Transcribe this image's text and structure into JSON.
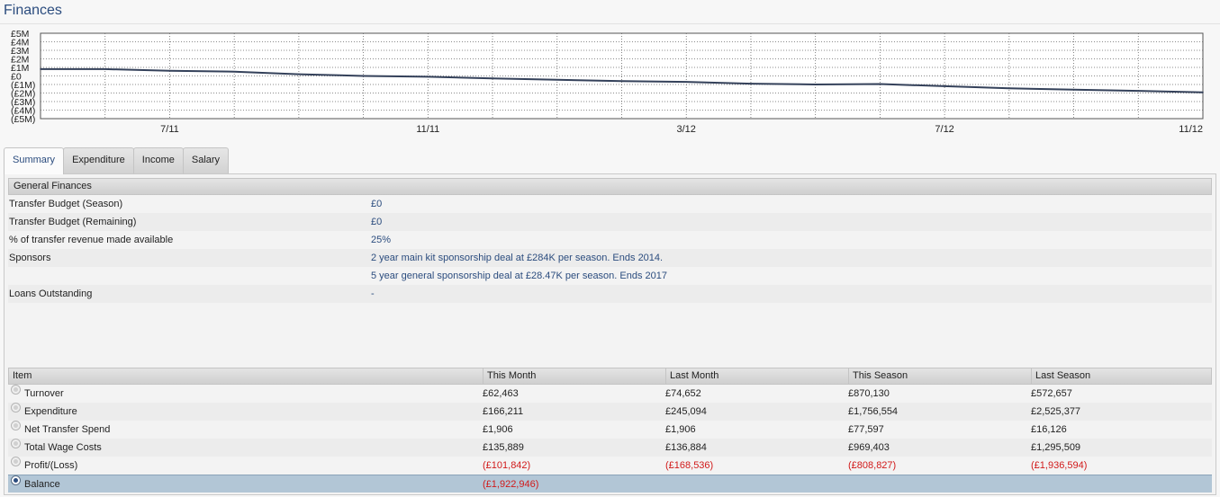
{
  "page": {
    "title": "Finances"
  },
  "chart_data": {
    "type": "line",
    "title": "",
    "y_tick_labels": [
      "£5M",
      "£4M",
      "£3M",
      "£2M",
      "£1M",
      "£0",
      "(£1M)",
      "(£2M)",
      "(£3M)",
      "(£4M)",
      "(£5M)"
    ],
    "y_ticks": [
      5,
      4,
      3,
      2,
      1,
      0,
      -1,
      -2,
      -3,
      -4,
      -5
    ],
    "ylim": [
      -5,
      5
    ],
    "x_tick_labels": [
      "7/11",
      "11/11",
      "3/12",
      "7/12",
      "11/12"
    ],
    "grid": true,
    "series": [
      {
        "color": "#34415a",
        "x": [
          "5/11",
          "6/11",
          "7/11",
          "8/11",
          "9/11",
          "10/11",
          "11/11",
          "12/11",
          "1/12",
          "2/12",
          "3/12",
          "4/12",
          "5/12",
          "6/12",
          "7/12",
          "8/12",
          "9/12",
          "10/12",
          "11/12"
        ],
        "values": [
          0.8,
          0.8,
          0.6,
          0.5,
          0.2,
          0.0,
          -0.1,
          -0.3,
          -0.45,
          -0.6,
          -0.7,
          -0.9,
          -1.0,
          -0.95,
          -1.2,
          -1.45,
          -1.6,
          -1.75,
          -1.92
        ]
      }
    ]
  },
  "tabs": [
    {
      "label": "Summary",
      "active": true
    },
    {
      "label": "Expenditure",
      "active": false
    },
    {
      "label": "Income",
      "active": false
    },
    {
      "label": "Salary",
      "active": false
    }
  ],
  "general": {
    "header": "General Finances",
    "rows": [
      {
        "label": "Transfer Budget (Season)",
        "value": "£0"
      },
      {
        "label": "Transfer Budget (Remaining)",
        "value": "£0"
      },
      {
        "label": "% of transfer revenue made available",
        "value": "25%"
      },
      {
        "label": "Sponsors",
        "value": "2 year main kit sponsorship deal at £284K per season. Ends 2014."
      },
      {
        "label": "",
        "value": "5 year general sponsorship deal at £28.47K per season. Ends 2017"
      },
      {
        "label": "Loans Outstanding",
        "value": "-"
      }
    ]
  },
  "table": {
    "columns": [
      "Item",
      "This Month",
      "Last Month",
      "This Season",
      "Last Season"
    ],
    "rows": [
      {
        "item": "Turnover",
        "this_month": "£62,463",
        "last_month": "£74,652",
        "this_season": "£870,130",
        "last_season": "£572,657",
        "negative": false,
        "selected": false
      },
      {
        "item": "Expenditure",
        "this_month": "£166,211",
        "last_month": "£245,094",
        "this_season": "£1,756,554",
        "last_season": "£2,525,377",
        "negative": false,
        "selected": false
      },
      {
        "item": "Net Transfer Spend",
        "this_month": "£1,906",
        "last_month": "£1,906",
        "this_season": "£77,597",
        "last_season": "£16,126",
        "negative": false,
        "selected": false
      },
      {
        "item": "Total Wage Costs",
        "this_month": "£135,889",
        "last_month": "£136,884",
        "this_season": "£969,403",
        "last_season": "£1,295,509",
        "negative": false,
        "selected": false
      },
      {
        "item": "Profit/(Loss)",
        "this_month": "(£101,842)",
        "last_month": "(£168,536)",
        "this_season": "(£808,827)",
        "last_season": "(£1,936,594)",
        "negative": true,
        "selected": false
      },
      {
        "item": "Balance",
        "this_month": "(£1,922,946)",
        "last_month": "",
        "this_season": "",
        "last_season": "",
        "negative": true,
        "selected": true
      }
    ]
  }
}
